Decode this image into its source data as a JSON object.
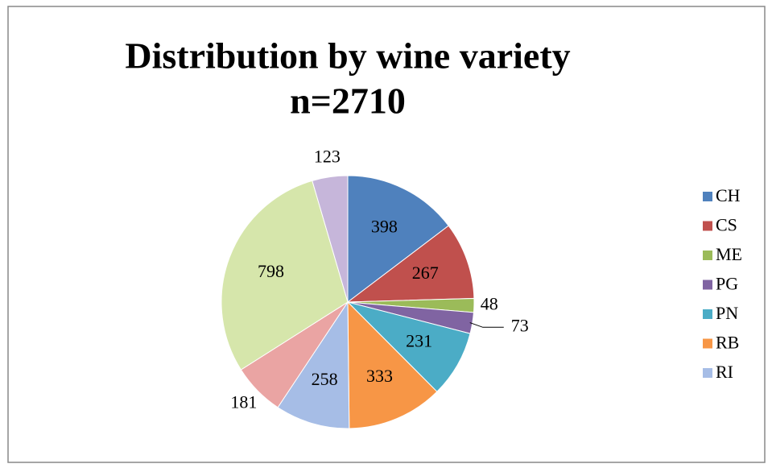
{
  "chart_data": {
    "type": "pie",
    "title": "Distribution by wine variety",
    "subtitle": "n=2710",
    "categories": [
      "CH",
      "CS",
      "ME",
      "PG",
      "PN",
      "RB",
      "RI",
      null,
      null,
      null
    ],
    "values": [
      398,
      267,
      48,
      73,
      231,
      333,
      258,
      181,
      798,
      123
    ],
    "colors": [
      "#4f81bd",
      "#c0504d",
      "#9bbb59",
      "#8064a2",
      "#4bacc6",
      "#f79646",
      "#a6bde6",
      "#eaa4a3",
      "#d6e6ab",
      "#c6b6da"
    ],
    "legend": "right"
  }
}
